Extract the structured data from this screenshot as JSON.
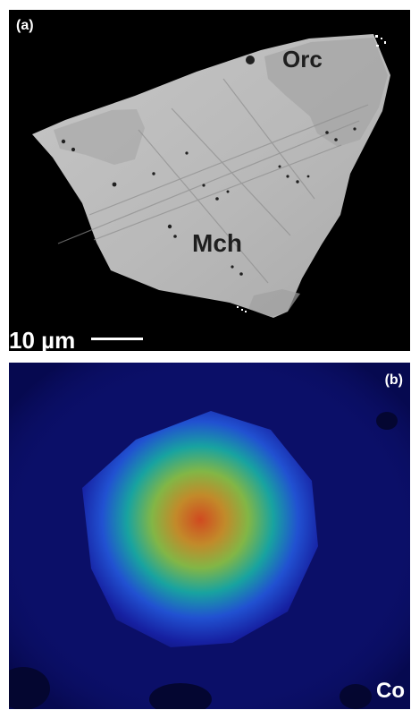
{
  "panels": {
    "a": {
      "label": "(a)",
      "phase_labels": [
        "Orc",
        "Mch"
      ],
      "scale": "10 µm"
    },
    "b": {
      "label": "(b)",
      "element": "Co"
    }
  },
  "colors": {
    "background_a": "#000000",
    "background_b": "#0b0f68",
    "grain": "#b8b8b8",
    "grain_dark": "#9a9a9a",
    "highlight": "#d36624"
  }
}
